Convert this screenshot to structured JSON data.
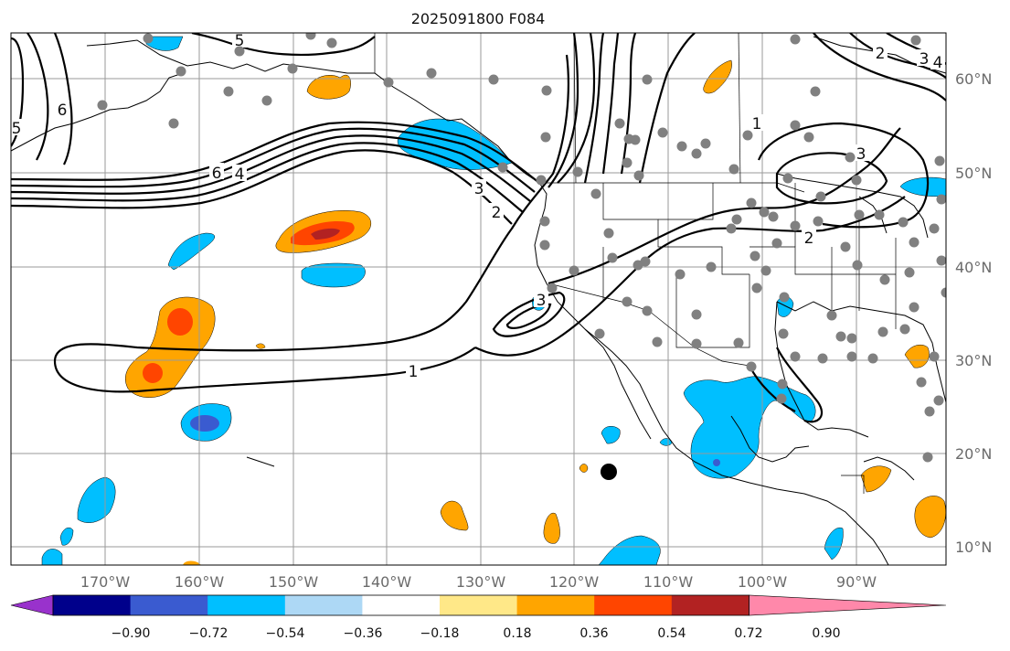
{
  "map": {
    "title": "2025091800 F084",
    "lon_labels": [
      "170°W",
      "160°W",
      "150°W",
      "140°W",
      "130°W",
      "120°W",
      "110°W",
      "100°W",
      "90°W"
    ],
    "lat_labels": [
      "60°N",
      "50°N",
      "40°N",
      "30°N",
      "20°N",
      "10°N"
    ],
    "contour_labels": [
      "5",
      "6",
      "6",
      "4",
      "3",
      "2",
      "1",
      "3",
      "2",
      "3",
      "1",
      "5",
      "2",
      "3",
      "4"
    ],
    "colorbar": {
      "ticks": [
        "−0.90",
        "−0.72",
        "−0.54",
        "−0.36",
        "−0.18",
        "0.18",
        "0.36",
        "0.54",
        "0.72",
        "0.90"
      ],
      "colors": [
        "#9932cc",
        "#00008b",
        "#3a5bd0",
        "#00bfff",
        "#add8f5",
        "#ffffff",
        "#ffe888",
        "#ffa500",
        "#ff4500",
        "#b22222",
        "#ff88aa"
      ]
    },
    "station_marker_color": "#808080",
    "storm_marker_color": "#000000"
  }
}
